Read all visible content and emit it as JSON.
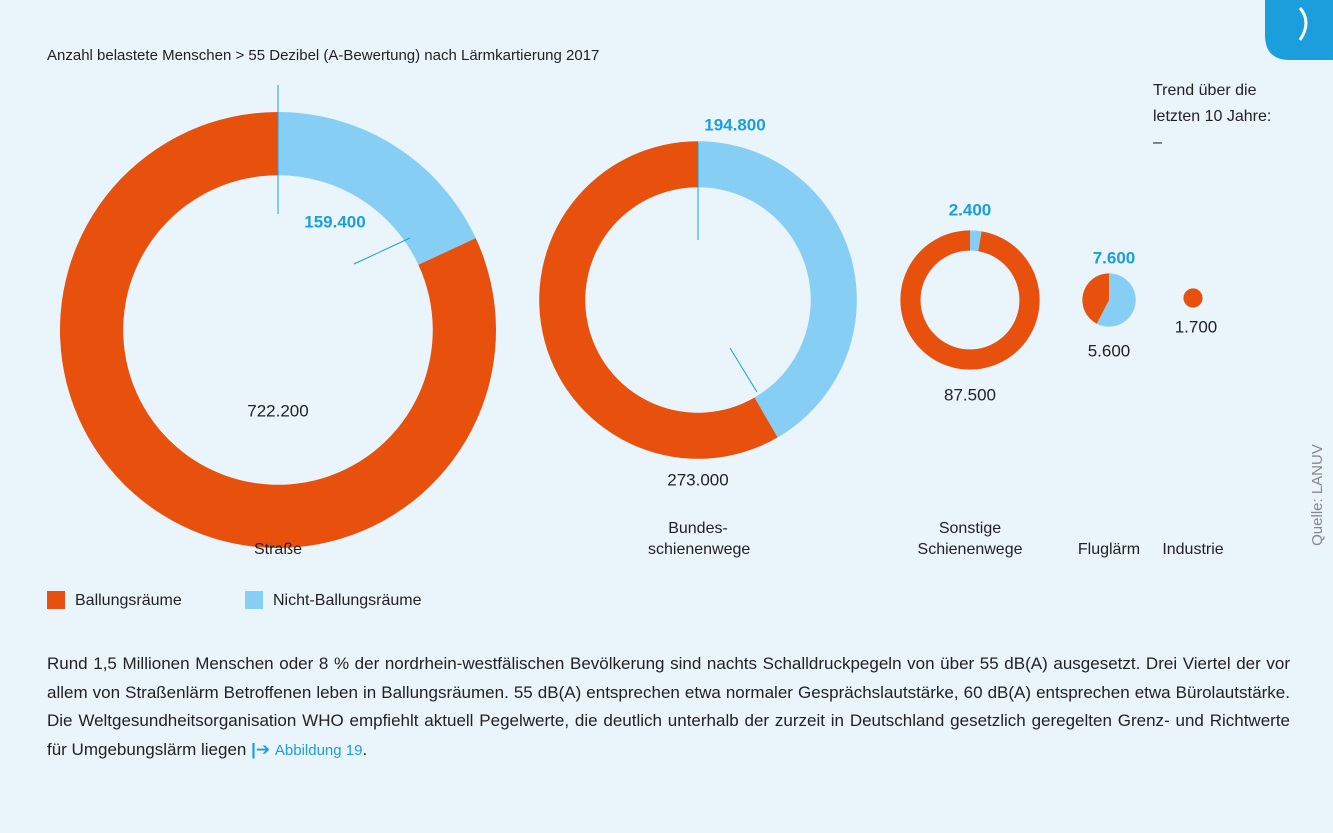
{
  "chart_data": {
    "type": "donut",
    "title": "Anzahl belastete Menschen > 55 Dezibel (A-Bewertung) nach Lärmkartierung 2017",
    "categories": [
      "Straße",
      "Bundes-schienenwege",
      "Sonstige Schienenwege",
      "Fluglärm",
      "Industrie"
    ],
    "series": [
      {
        "name": "Ballungsräume",
        "color": "#e8500e",
        "values": [
          722200,
          273000,
          87500,
          5600,
          1700
        ],
        "value_labels": [
          "722.200",
          "273.000",
          "87.500",
          "5.600",
          "1.700"
        ]
      },
      {
        "name": "Nicht-Ballungsräume",
        "color": "#87cef4",
        "values": [
          159400,
          194800,
          2400,
          7600,
          null
        ],
        "value_labels": [
          "159.400",
          "194.800",
          "2.400",
          "7.600",
          null
        ]
      }
    ],
    "trend": [
      "Trend über die",
      "letzten 10 Jahre:",
      "–"
    ],
    "source": "Quelle: LANUV"
  },
  "text": {
    "paragraph": "Rund 1,5 Millionen Menschen oder 8 % der nordrhein-westfälischen Bevölkerung sind nachts Schalldruckpegeln von über 55 dB(A) ausgesetzt. Drei Viertel der vor allem von Straßenlärm Betroffenen leben in Ballungsräumen. 55 dB(A) entsprechen etwa normaler Gesprächslautstärke, 60 dB(A) entsprechen etwa Bürolautstärke. Die Weltgesundheitsorganisation WHO empfiehlt aktuell Pegelwerte, die deutlich unterhalb der zurzeit in Deutschland gesetzlich geregelten Grenz- und Richtwerte für Umgebungslärm liegen",
    "link_arrow": "|➔",
    "link": "Abbildung 19",
    "end": "."
  }
}
